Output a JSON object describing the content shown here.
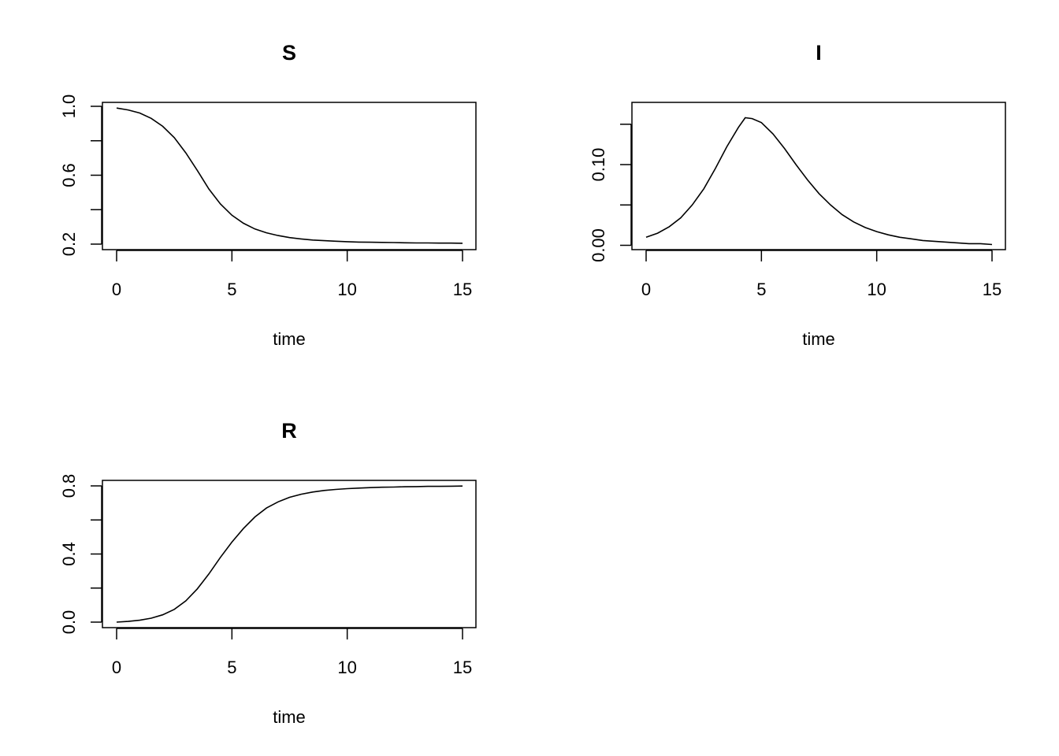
{
  "chart_data": [
    {
      "type": "line",
      "title": "S",
      "xlabel": "time",
      "ylabel": "",
      "xlim": [
        0,
        15
      ],
      "ylim": [
        0.2,
        1.0
      ],
      "x_ticks": [
        0,
        5,
        10,
        15
      ],
      "x_tick_labels": [
        "0",
        "5",
        "10",
        "15"
      ],
      "y_ticks": [
        0.2,
        0.4,
        0.6,
        0.8,
        1.0
      ],
      "y_tick_labels": [
        "0.2",
        "",
        "0.6",
        "",
        "1.0"
      ],
      "series": [
        {
          "x": [
            0,
            0.5,
            1,
            1.5,
            2,
            2.5,
            3,
            3.5,
            4,
            4.5,
            5,
            5.5,
            6,
            6.5,
            7,
            7.5,
            8,
            8.5,
            9,
            9.5,
            10,
            10.5,
            11,
            11.5,
            12,
            12.5,
            13,
            13.5,
            14,
            14.5,
            15
          ],
          "values": [
            0.99,
            0.979,
            0.961,
            0.93,
            0.884,
            0.818,
            0.73,
            0.628,
            0.52,
            0.433,
            0.368,
            0.321,
            0.288,
            0.266,
            0.25,
            0.238,
            0.23,
            0.224,
            0.22,
            0.217,
            0.214,
            0.212,
            0.211,
            0.21,
            0.209,
            0.208,
            0.207,
            0.207,
            0.206,
            0.206,
            0.205
          ]
        }
      ],
      "grid": false
    },
    {
      "type": "line",
      "title": "I",
      "xlabel": "time",
      "ylabel": "",
      "xlim": [
        0,
        15
      ],
      "ylim": [
        0.0,
        0.16
      ],
      "x_ticks": [
        0,
        5,
        10,
        15
      ],
      "x_tick_labels": [
        "0",
        "5",
        "10",
        "15"
      ],
      "y_ticks": [
        0.0,
        0.05,
        0.1,
        0.15
      ],
      "y_tick_labels": [
        "0.00",
        "",
        "0.10",
        ""
      ],
      "series": [
        {
          "x": [
            0,
            0.5,
            1,
            1.5,
            2,
            2.5,
            3,
            3.5,
            4,
            4.3,
            4.6,
            5,
            5.5,
            6,
            6.5,
            7,
            7.5,
            8,
            8.5,
            9,
            9.5,
            10,
            10.5,
            11,
            11.5,
            12,
            12.5,
            13,
            13.5,
            14,
            14.5,
            15
          ],
          "values": [
            0.01,
            0.015,
            0.023,
            0.034,
            0.05,
            0.07,
            0.095,
            0.122,
            0.146,
            0.158,
            0.157,
            0.152,
            0.138,
            0.12,
            0.1,
            0.081,
            0.064,
            0.05,
            0.038,
            0.029,
            0.022,
            0.017,
            0.013,
            0.01,
            0.008,
            0.006,
            0.005,
            0.004,
            0.003,
            0.002,
            0.002,
            0.001
          ]
        }
      ],
      "grid": false
    },
    {
      "type": "line",
      "title": "R",
      "xlabel": "time",
      "ylabel": "",
      "xlim": [
        0,
        15
      ],
      "ylim": [
        0.0,
        0.8
      ],
      "x_ticks": [
        0,
        5,
        10,
        15
      ],
      "x_tick_labels": [
        "0",
        "5",
        "10",
        "15"
      ],
      "y_ticks": [
        0.0,
        0.2,
        0.4,
        0.6,
        0.8
      ],
      "y_tick_labels": [
        "0.0",
        "",
        "0.4",
        "",
        "0.8"
      ],
      "series": [
        {
          "x": [
            0,
            0.5,
            1,
            1.5,
            2,
            2.5,
            3,
            3.5,
            4,
            4.5,
            5,
            5.5,
            6,
            6.5,
            7,
            7.5,
            8,
            8.5,
            9,
            9.5,
            10,
            10.5,
            11,
            11.5,
            12,
            12.5,
            13,
            13.5,
            14,
            14.5,
            15
          ],
          "values": [
            0.0,
            0.004,
            0.011,
            0.023,
            0.043,
            0.075,
            0.125,
            0.195,
            0.283,
            0.38,
            0.47,
            0.55,
            0.618,
            0.67,
            0.706,
            0.733,
            0.751,
            0.764,
            0.773,
            0.779,
            0.784,
            0.787,
            0.79,
            0.792,
            0.793,
            0.795,
            0.796,
            0.797,
            0.797,
            0.798,
            0.799
          ]
        }
      ],
      "grid": false
    }
  ]
}
